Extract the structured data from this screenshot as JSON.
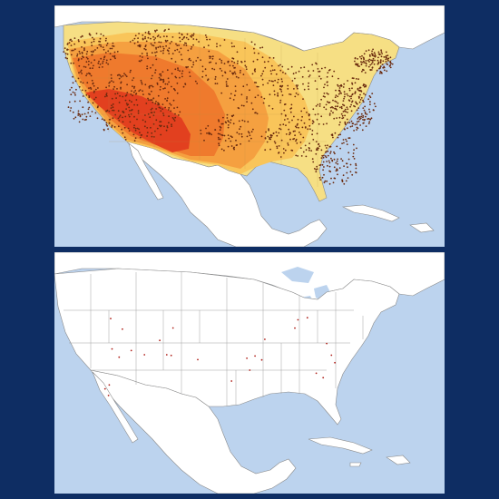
{
  "colors": {
    "frame": "#0e2d63",
    "water": "#bcd3ee",
    "land": "#ffffff",
    "border": "#8a8a8a",
    "zone_pale": "#f6df84",
    "zone_light": "#f9c55a",
    "zone_mid": "#f5a040",
    "zone_orange": "#ef7a2d",
    "zone_red": "#e2401f",
    "dot": "#6a2a0e",
    "dot_sparse": "#b0201a"
  },
  "panels": [
    {
      "id": "top",
      "description_icon": "heat-map"
    },
    {
      "id": "bottom",
      "description_icon": "sparse-map"
    }
  ]
}
